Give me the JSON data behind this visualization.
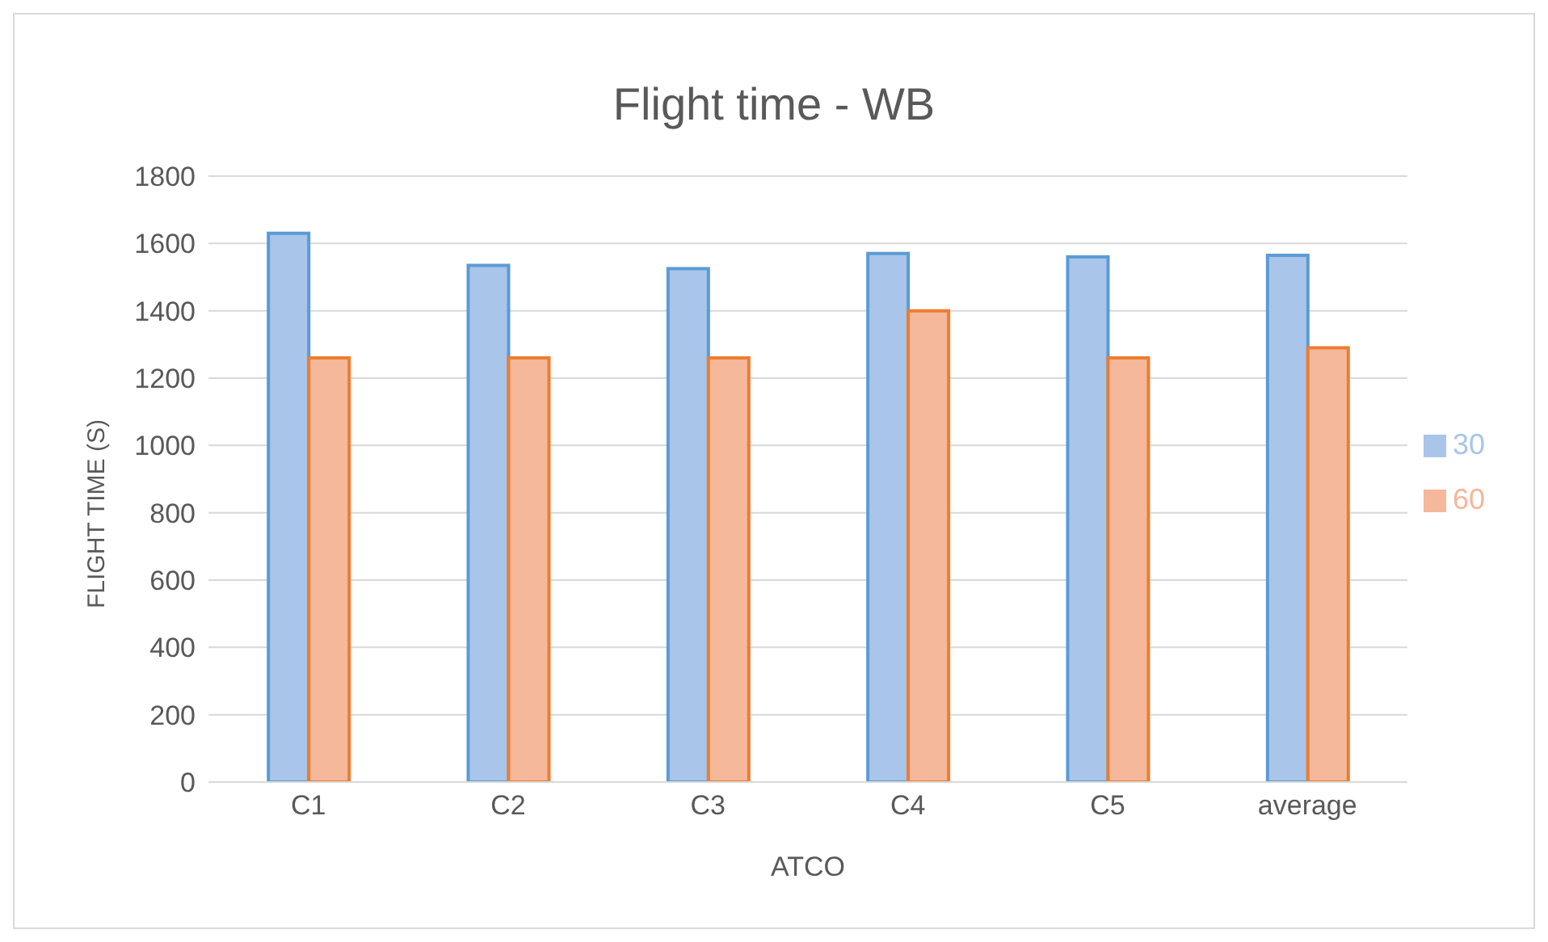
{
  "chart_data": {
    "type": "bar",
    "title": "Flight time - WB",
    "xlabel": "ATCO",
    "ylabel": "FLIGHT TIME (S)",
    "categories": [
      "C1",
      "C2",
      "C3",
      "C4",
      "C5",
      "average"
    ],
    "series": [
      {
        "name": "30",
        "color": "#a9c5ea",
        "values": [
          1630,
          1535,
          1525,
          1570,
          1560,
          1565
        ]
      },
      {
        "name": "60",
        "color": "#f5b89a",
        "values": [
          1260,
          1260,
          1260,
          1400,
          1260,
          1290
        ]
      }
    ],
    "ylim": [
      0,
      1800
    ],
    "yticks": [
      0,
      200,
      400,
      600,
      800,
      1000,
      1200,
      1400,
      1600,
      1800
    ],
    "grid": "y",
    "legend": "right"
  }
}
